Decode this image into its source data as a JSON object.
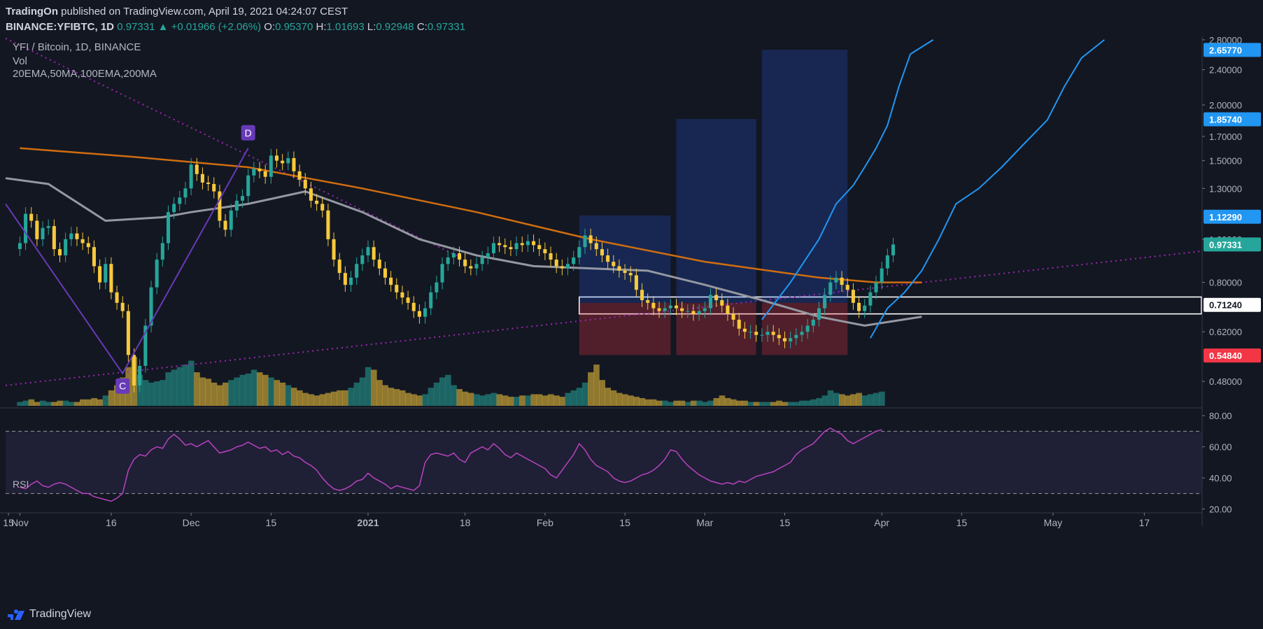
{
  "header": {
    "publisher": "TradingOn",
    "published_text": "published on TradingView.com, April 19, 2021 04:24:07 CEST",
    "symbol": "BINANCE:YFIBTC",
    "interval": ", 1D",
    "price": "0.97331",
    "change": "+0.01966 (+2.06%)",
    "o_label": "O:",
    "o": "0.95370",
    "h_label": "H:",
    "h": "1.01693",
    "l_label": "L:",
    "l": "0.92948",
    "c_label": "C:",
    "c": "0.97331"
  },
  "legend": {
    "title": "YFI / Bitcoin, 1D, BINANCE",
    "vol": "Vol",
    "mas": "20EMA,50MA,100EMA,200MA",
    "rsi": "RSI"
  },
  "footer": {
    "brand": "TradingView"
  },
  "colors": {
    "background": "#131722",
    "up": "#26a69a",
    "down": "#f7c93c",
    "ma50": "#9598a1",
    "ma200": "#d06d0f",
    "ema20": "#2196f3",
    "trend": "#9c27b0",
    "rsi": "#b041b8",
    "box_red": "#f23645",
    "box_blue": "#2962ff"
  },
  "chart_data": [
    {
      "type": "line",
      "name": "price",
      "scale": "log",
      "ylim": [
        0.42,
        2.85
      ],
      "y_ticks": [
        0.48,
        0.62,
        0.8,
        1.0,
        1.3,
        1.5,
        1.7,
        2.0,
        2.4,
        2.8
      ],
      "y_tick_labels": [
        "0.48000",
        "0.62000",
        "0.80000",
        "1.00000",
        "1.30000",
        "1.50000",
        "1.70000",
        "2.00000",
        "2.40000",
        "2.80000"
      ],
      "x_labels": [
        {
          "day": -2,
          "text": "15"
        },
        {
          "day": 0,
          "text": "Nov"
        },
        {
          "day": 16,
          "text": "16"
        },
        {
          "day": 30,
          "text": "Dec"
        },
        {
          "day": 44,
          "text": "15"
        },
        {
          "day": 61,
          "text": "2021"
        },
        {
          "day": 78,
          "text": "18"
        },
        {
          "day": 92,
          "text": "Feb"
        },
        {
          "day": 106,
          "text": "15"
        },
        {
          "day": 120,
          "text": "Mar"
        },
        {
          "day": 134,
          "text": "15"
        },
        {
          "day": 151,
          "text": "Apr"
        },
        {
          "day": 165,
          "text": "15"
        },
        {
          "day": 181,
          "text": "May"
        },
        {
          "day": 197,
          "text": "17"
        }
      ],
      "x_range_days": [
        -2.5,
        207
      ],
      "candles_close": [
        0.98,
        1.14,
        1.1,
        1.0,
        1.06,
        1.07,
        0.95,
        0.92,
        1.0,
        1.03,
        1.0,
        0.98,
        0.96,
        0.87,
        0.8,
        0.88,
        0.76,
        0.72,
        0.69,
        0.55,
        0.47,
        0.52,
        0.64,
        0.78,
        0.9,
        0.98,
        1.15,
        1.2,
        1.24,
        1.3,
        1.47,
        1.4,
        1.34,
        1.33,
        1.28,
        1.1,
        1.05,
        1.16,
        1.22,
        1.25,
        1.39,
        1.44,
        1.42,
        1.38,
        1.54,
        1.5,
        1.48,
        1.52,
        1.42,
        1.36,
        1.3,
        1.22,
        1.2,
        1.16,
        1.0,
        0.9,
        0.84,
        0.79,
        0.82,
        0.88,
        0.92,
        0.96,
        0.9,
        0.86,
        0.82,
        0.79,
        0.76,
        0.74,
        0.72,
        0.69,
        0.67,
        0.7,
        0.76,
        0.8,
        0.88,
        0.91,
        0.93,
        0.9,
        0.87,
        0.86,
        0.88,
        0.91,
        0.93,
        0.98,
        0.97,
        0.96,
        0.95,
        0.98,
        0.97,
        0.99,
        0.97,
        0.95,
        0.93,
        0.9,
        0.87,
        0.86,
        0.88,
        0.91,
        0.96,
        1.02,
        0.98,
        0.95,
        0.92,
        0.89,
        0.87,
        0.85,
        0.84,
        0.83,
        0.77,
        0.73,
        0.72,
        0.7,
        0.69,
        0.7,
        0.71,
        0.7,
        0.69,
        0.69,
        0.68,
        0.69,
        0.7,
        0.75,
        0.73,
        0.71,
        0.68,
        0.66,
        0.63,
        0.62,
        0.62,
        0.61,
        0.61,
        0.62,
        0.61,
        0.6,
        0.59,
        0.6,
        0.61,
        0.62,
        0.64,
        0.66,
        0.7,
        0.75,
        0.8,
        0.82,
        0.79,
        0.77,
        0.72,
        0.69,
        0.71,
        0.76,
        0.8,
        0.86,
        0.92,
        0.97331
      ],
      "series": [
        {
          "name": "200MA",
          "points": [
            [
              0,
              1.6
            ],
            [
              20,
              1.53
            ],
            [
              40,
              1.45
            ],
            [
              60,
              1.3
            ],
            [
              80,
              1.15
            ],
            [
              100,
              1.0
            ],
            [
              120,
              0.89
            ],
            [
              140,
              0.82
            ],
            [
              150,
              0.8
            ],
            [
              158,
              0.8
            ]
          ]
        },
        {
          "name": "50MA",
          "points": [
            [
              -2.5,
              1.37
            ],
            [
              5,
              1.33
            ],
            [
              15,
              1.1
            ],
            [
              25,
              1.12
            ],
            [
              30,
              1.15
            ],
            [
              40,
              1.2
            ],
            [
              50,
              1.28
            ],
            [
              60,
              1.15
            ],
            [
              70,
              1.0
            ],
            [
              80,
              0.92
            ],
            [
              90,
              0.87
            ],
            [
              100,
              0.86
            ],
            [
              110,
              0.85
            ],
            [
              120,
              0.79
            ],
            [
              130,
              0.73
            ],
            [
              140,
              0.67
            ],
            [
              148,
              0.64
            ],
            [
              158,
              0.67
            ]
          ]
        },
        {
          "name": "20EMA-projection-1",
          "points": [
            [
              130,
              0.66
            ],
            [
              135,
              0.8
            ],
            [
              140,
              1.0
            ],
            [
              143,
              1.2
            ],
            [
              146,
              1.32
            ],
            [
              148,
              1.45
            ],
            [
              150,
              1.6
            ],
            [
              152,
              1.8
            ],
            [
              154,
              2.2
            ],
            [
              156,
              2.6
            ],
            [
              160,
              2.8
            ]
          ]
        },
        {
          "name": "20EMA-projection-2",
          "points": [
            [
              149,
              0.6
            ],
            [
              152,
              0.7
            ],
            [
              155,
              0.76
            ],
            [
              158,
              0.85
            ],
            [
              161,
              1.0
            ],
            [
              164,
              1.2
            ],
            [
              168,
              1.3
            ],
            [
              172,
              1.45
            ],
            [
              176,
              1.64
            ],
            [
              180,
              1.85
            ],
            [
              183,
              2.2
            ],
            [
              186,
              2.55
            ],
            [
              190,
              2.8
            ]
          ]
        }
      ],
      "trendlines": [
        {
          "name": "descending-resistance",
          "points": [
            [
              -2.5,
              2.82
            ],
            [
              78,
              0.9
            ]
          ]
        },
        {
          "name": "ascending-support",
          "points": [
            [
              -2.5,
              0.47
            ],
            [
              207,
              0.94
            ]
          ]
        }
      ],
      "pattern": [
        {
          "label": "C",
          "day": 18,
          "price": 0.5
        },
        {
          "label": "D",
          "day": 40,
          "price": 1.6
        }
      ],
      "zones": [
        {
          "type": "support-box",
          "x": [
            98,
            207
          ],
          "y": [
            0.68,
            0.742
          ]
        },
        {
          "type": "red-box",
          "x": [
            98,
            114
          ],
          "y": [
            0.55,
            0.72
          ]
        },
        {
          "type": "red-box",
          "x": [
            115,
            129
          ],
          "y": [
            0.55,
            0.72
          ]
        },
        {
          "type": "red-box",
          "x": [
            130,
            145
          ],
          "y": [
            0.55,
            0.72
          ]
        },
        {
          "type": "blue-box",
          "x": [
            98,
            114
          ],
          "y": [
            0.72,
            1.13
          ]
        },
        {
          "type": "blue-box",
          "x": [
            115,
            129
          ],
          "y": [
            0.72,
            1.86
          ]
        },
        {
          "type": "blue-box",
          "x": [
            130,
            145
          ],
          "y": [
            0.72,
            2.66
          ]
        }
      ],
      "price_labels": [
        {
          "value": 2.6577,
          "text": "2.65770",
          "color": "#2196f3"
        },
        {
          "value": 1.8574,
          "text": "1.85740",
          "color": "#2196f3"
        },
        {
          "value": 1.1229,
          "text": "1.12290",
          "color": "#2196f3"
        },
        {
          "value": 0.97331,
          "text": "0.97331",
          "color": "#26a69a"
        },
        {
          "value": 0.7124,
          "text": "0.71240",
          "color": "#131722"
        },
        {
          "value": 0.5484,
          "text": "0.54840",
          "color": "#f23645"
        }
      ]
    },
    {
      "type": "line",
      "name": "RSI",
      "ylim": [
        18,
        85
      ],
      "y_ticks": [
        20,
        40,
        60,
        80
      ],
      "y_tick_labels": [
        "20.00",
        "40.00",
        "60.00",
        "80.00"
      ],
      "bands": [
        30,
        70
      ],
      "values": [
        34,
        33,
        36,
        38,
        35,
        34,
        36,
        37,
        36,
        34,
        32,
        30,
        30,
        28,
        27,
        26,
        25,
        27,
        30,
        45,
        52,
        55,
        54,
        58,
        60,
        59,
        65,
        68,
        65,
        61,
        62,
        60,
        62,
        64,
        60,
        56,
        57,
        58,
        60,
        61,
        63,
        61,
        59,
        60,
        57,
        58,
        55,
        57,
        54,
        53,
        50,
        48,
        45,
        40,
        36,
        33,
        32,
        33,
        35,
        38,
        39,
        43,
        40,
        38,
        36,
        33,
        35,
        34,
        33,
        32,
        35,
        50,
        55,
        56,
        55,
        54,
        56,
        52,
        50,
        56,
        58,
        60,
        58,
        62,
        59,
        55,
        53,
        56,
        54,
        52,
        50,
        48,
        46,
        42,
        40,
        45,
        50,
        55,
        62,
        58,
        52,
        48,
        46,
        44,
        40,
        38,
        37,
        38,
        40,
        42,
        43,
        45,
        48,
        52,
        58,
        57,
        52,
        48,
        45,
        42,
        40,
        38,
        37,
        36,
        37,
        36,
        38,
        37,
        39,
        41,
        42,
        43,
        44,
        46,
        48,
        50,
        55,
        58,
        60,
        62,
        66,
        70,
        72,
        70,
        68,
        64,
        62,
        64,
        66,
        68,
        70,
        71
      ],
      "ylabel": "RSI"
    },
    {
      "type": "bar",
      "name": "volume",
      "values": [
        3,
        4,
        5,
        3,
        4,
        3,
        3,
        4,
        4,
        3,
        3,
        5,
        5,
        6,
        5,
        8,
        12,
        16,
        22,
        30,
        38,
        24,
        20,
        18,
        19,
        20,
        26,
        28,
        30,
        32,
        35,
        26,
        22,
        21,
        18,
        16,
        18,
        20,
        22,
        24,
        25,
        28,
        26,
        24,
        22,
        20,
        18,
        16,
        14,
        12,
        10,
        9,
        8,
        9,
        10,
        11,
        12,
        12,
        14,
        18,
        22,
        30,
        28,
        20,
        16,
        14,
        13,
        12,
        10,
        9,
        8,
        9,
        14,
        18,
        22,
        24,
        16,
        13,
        11,
        10,
        9,
        8,
        9,
        10,
        9,
        8,
        7,
        7,
        8,
        8,
        9,
        9,
        8,
        9,
        8,
        7,
        10,
        12,
        14,
        18,
        26,
        32,
        20,
        14,
        12,
        10,
        9,
        8,
        7,
        6,
        5,
        5,
        4,
        4,
        3,
        4,
        4,
        3,
        4,
        4,
        3,
        4,
        6,
        8,
        6,
        5,
        4,
        4,
        3,
        3,
        3,
        3,
        3,
        4,
        3,
        3,
        3,
        4,
        4,
        5,
        6,
        8,
        12,
        10,
        9,
        8,
        9,
        10,
        8,
        9,
        10,
        11
      ]
    }
  ]
}
